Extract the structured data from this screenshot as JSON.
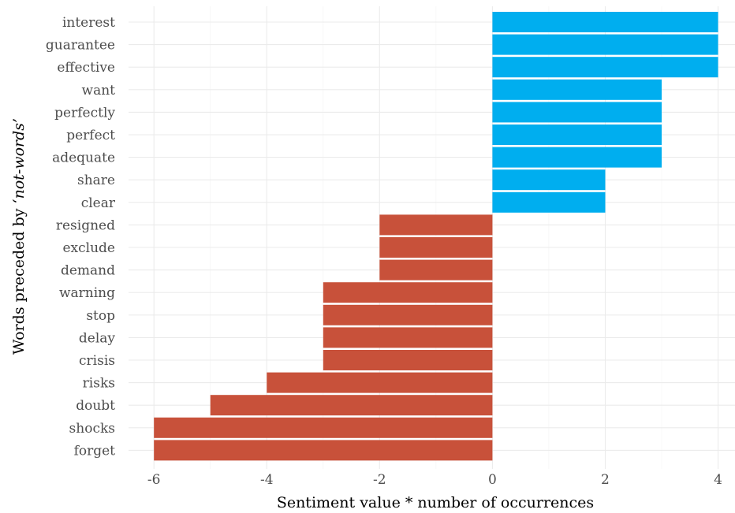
{
  "chart_data": {
    "type": "bar",
    "orientation": "horizontal",
    "xlabel": "Sentiment value * number of occurrences",
    "ylabel_prefix": "Words preceded by ",
    "ylabel_emphasis": "‘not-words’",
    "xlim": [
      -6.45,
      4.3
    ],
    "xticks": [
      -6,
      -4,
      -2,
      0,
      2,
      4
    ],
    "xtick_labels": [
      "-6",
      "-4",
      "-2",
      "0",
      "2",
      "4"
    ],
    "grid": true,
    "legend": "none",
    "colors": {
      "positive": "#00AEEF",
      "negative": "#C8513A"
    },
    "categories": [
      "interest",
      "guarantee",
      "effective",
      "want",
      "perfectly",
      "perfect",
      "adequate",
      "share",
      "clear",
      "resigned",
      "exclude",
      "demand",
      "warning",
      "stop",
      "delay",
      "crisis",
      "risks",
      "doubt",
      "shocks",
      "forget"
    ],
    "values": [
      4,
      4,
      4,
      3,
      3,
      3,
      3,
      2,
      2,
      -2,
      -2,
      -2,
      -3,
      -3,
      -3,
      -3,
      -4,
      -5,
      -6,
      -6
    ]
  }
}
